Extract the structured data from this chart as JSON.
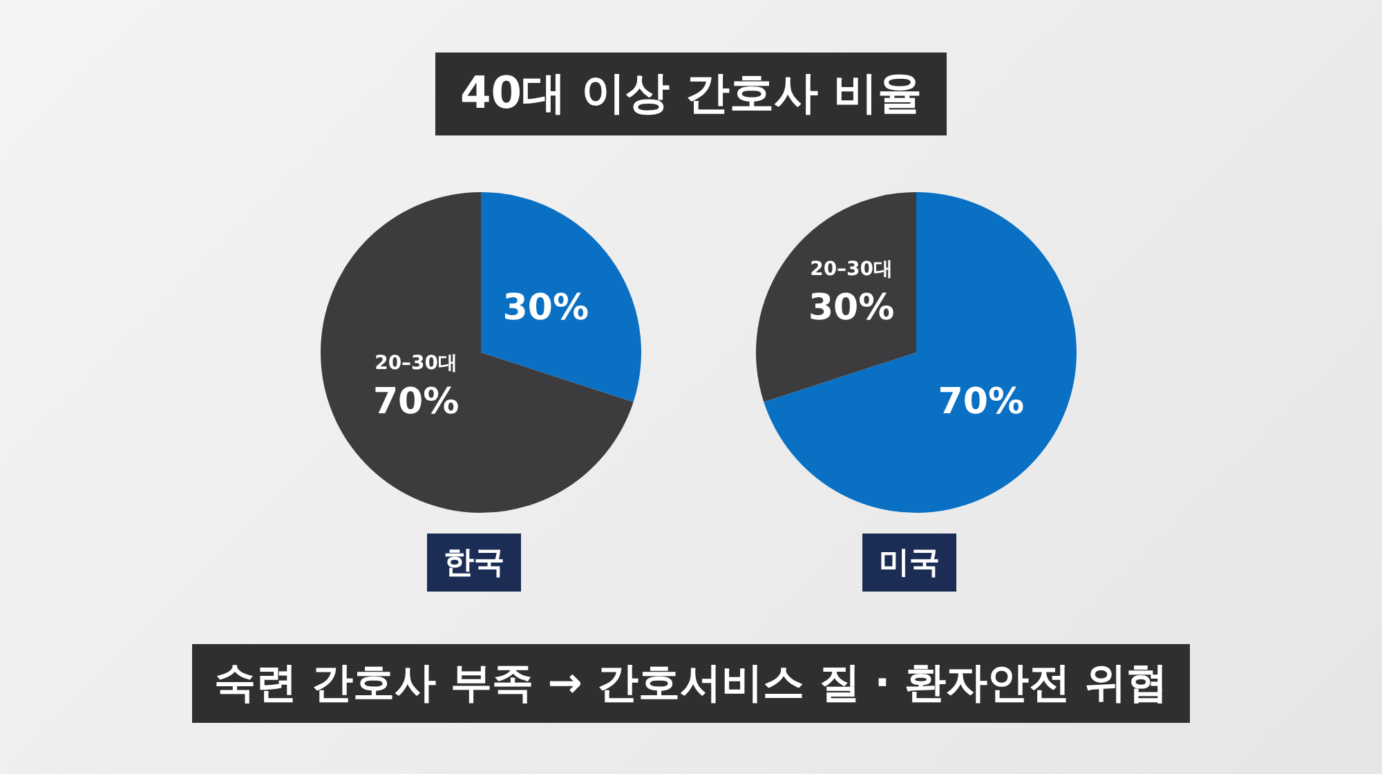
{
  "chart_data": [
    {
      "type": "pie",
      "title": "40대 이상 간호사 비율",
      "xlabel": "한국",
      "categories": [
        null,
        "20–30대"
      ],
      "values": [
        30,
        70
      ],
      "colors": [
        "#0a70c4",
        "#3c3c3e"
      ],
      "value_labels": [
        "30%",
        "70%"
      ]
    },
    {
      "type": "pie",
      "xlabel": "미국",
      "categories": [
        null,
        "20–30대"
      ],
      "values": [
        70,
        30
      ],
      "colors": [
        "#0a70c4",
        "#3c3c3e"
      ],
      "value_labels": [
        "70%",
        "30%"
      ],
      "annotations": [
        "숙련 간호사 부족 → 간호서비스 질 · 환자안전 위협"
      ]
    }
  ]
}
